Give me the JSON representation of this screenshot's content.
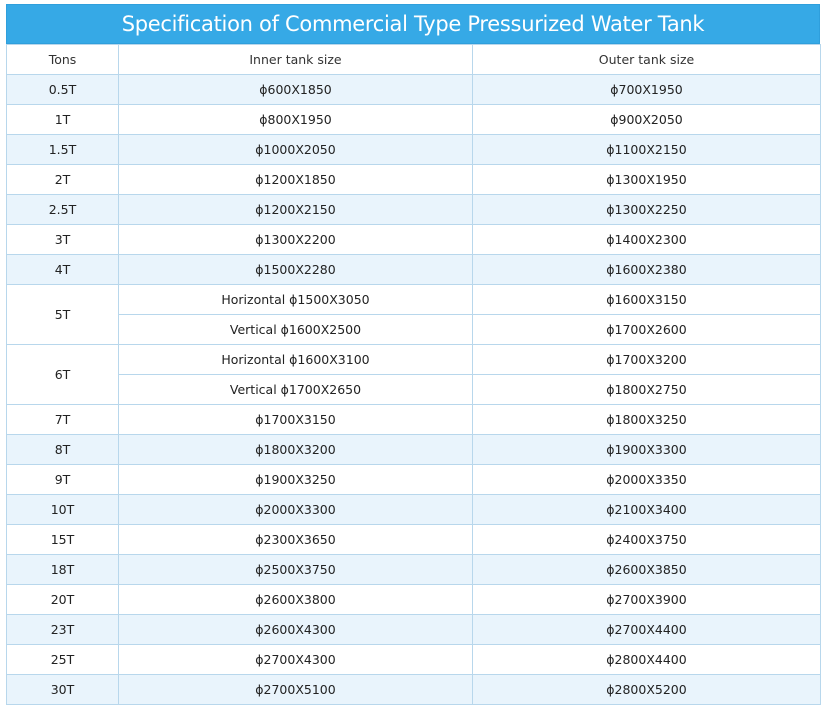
{
  "title": "Specification of Commercial Type Pressurized Water Tank",
  "headers": [
    "Tons",
    "Inner tank size",
    "Outer tank size"
  ],
  "rows": [
    {
      "tons": "0.5T",
      "sub": [
        [
          "ϕ600X1850",
          "ϕ700X1950"
        ]
      ]
    },
    {
      "tons": "1T",
      "sub": [
        [
          "ϕ800X1950",
          "ϕ900X2050"
        ]
      ]
    },
    {
      "tons": "1.5T",
      "sub": [
        [
          "ϕ1000X2050",
          "ϕ1100X2150"
        ]
      ]
    },
    {
      "tons": "2T",
      "sub": [
        [
          "ϕ1200X1850",
          "ϕ1300X1950"
        ]
      ]
    },
    {
      "tons": "2.5T",
      "sub": [
        [
          "ϕ1200X2150",
          "ϕ1300X2250"
        ]
      ]
    },
    {
      "tons": "3T",
      "sub": [
        [
          "ϕ1300X2200",
          "ϕ1400X2300"
        ]
      ]
    },
    {
      "tons": "4T",
      "sub": [
        [
          "ϕ1500X2280",
          "ϕ1600X2380"
        ]
      ]
    },
    {
      "tons": "5T",
      "sub": [
        [
          "Horizontal ϕ1500X3050",
          "ϕ1600X3150"
        ],
        [
          "Vertical ϕ1600X2500",
          "ϕ1700X2600"
        ]
      ]
    },
    {
      "tons": "6T",
      "sub": [
        [
          "Horizontal ϕ1600X3100",
          "ϕ1700X3200"
        ],
        [
          "Vertical ϕ1700X2650",
          "ϕ1800X2750"
        ]
      ]
    },
    {
      "tons": "7T",
      "sub": [
        [
          "ϕ1700X3150",
          "ϕ1800X3250"
        ]
      ]
    },
    {
      "tons": "8T",
      "sub": [
        [
          "ϕ1800X3200",
          "ϕ1900X3300"
        ]
      ]
    },
    {
      "tons": "9T",
      "sub": [
        [
          "ϕ1900X3250",
          "ϕ2000X3350"
        ]
      ]
    },
    {
      "tons": "10T",
      "sub": [
        [
          "ϕ2000X3300",
          "ϕ2100X3400"
        ]
      ]
    },
    {
      "tons": "15T",
      "sub": [
        [
          "ϕ2300X3650",
          "ϕ2400X3750"
        ]
      ]
    },
    {
      "tons": "18T",
      "sub": [
        [
          "ϕ2500X3750",
          "ϕ2600X3850"
        ]
      ]
    },
    {
      "tons": "20T",
      "sub": [
        [
          "ϕ2600X3800",
          "ϕ2700X3900"
        ]
      ]
    },
    {
      "tons": "23T",
      "sub": [
        [
          "ϕ2600X4300",
          "ϕ2700X4400"
        ]
      ]
    },
    {
      "tons": "25T",
      "sub": [
        [
          "ϕ2700X4300",
          "ϕ2800X4400"
        ]
      ]
    },
    {
      "tons": "30T",
      "sub": [
        [
          "ϕ2700X5100",
          "ϕ2800X5200"
        ]
      ]
    }
  ],
  "colors": {
    "title_bg": "#36a9e6",
    "stripe": "#e9f4fc",
    "border": "#b8d7ec"
  }
}
